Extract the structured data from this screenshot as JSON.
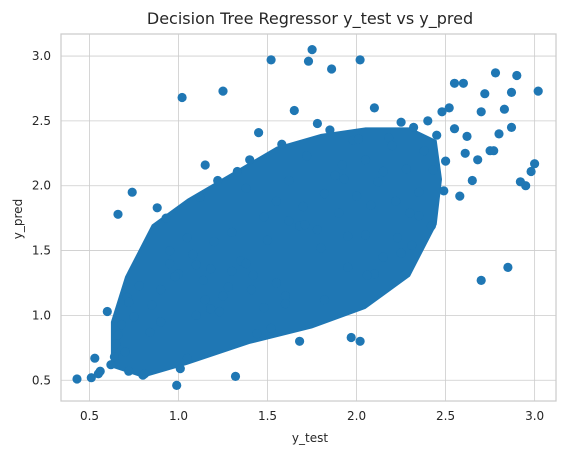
{
  "chart_data": {
    "type": "scatter",
    "title": "Decision Tree Regressor y_test vs y_pred",
    "xlabel": "y_test",
    "ylabel": "y_pred",
    "xlim": [
      0.34,
      3.12
    ],
    "ylim": [
      0.34,
      3.17
    ],
    "xticks": [
      0.5,
      1.0,
      1.5,
      2.0,
      2.5,
      3.0
    ],
    "xtick_labels": [
      "0.5",
      "1.0",
      "1.5",
      "2.0",
      "2.5",
      "3.0"
    ],
    "yticks": [
      0.5,
      1.0,
      1.5,
      2.0,
      2.5,
      3.0
    ],
    "ytick_labels": [
      "0.5",
      "1.0",
      "1.5",
      "2.0",
      "2.5",
      "3.0"
    ],
    "grid": true,
    "marker_color": "#1f77b4",
    "series": [
      {
        "x": [
          0.43,
          0.51,
          0.53,
          0.56,
          0.55,
          0.62,
          0.65,
          0.6,
          0.64,
          0.7,
          0.72,
          0.68,
          0.75,
          0.66,
          0.8,
          0.78,
          0.71,
          0.85,
          0.9,
          0.88,
          0.93,
          0.95,
          1.0,
          1.02,
          1.05,
          1.08,
          1.1,
          1.12,
          1.15,
          1.18,
          1.2,
          1.22,
          1.25,
          1.28,
          1.3,
          1.33,
          1.35,
          1.38,
          1.4,
          1.42,
          1.45,
          1.48,
          1.5,
          1.52,
          1.55,
          1.58,
          1.6,
          1.62,
          1.65,
          1.68,
          1.7,
          1.72,
          1.75,
          1.78,
          1.8,
          1.82,
          1.85,
          1.88,
          1.9,
          1.92,
          1.95,
          1.98,
          2.0,
          2.02,
          2.05,
          2.08,
          2.1,
          2.12,
          2.15,
          2.18,
          2.2,
          2.22,
          2.25,
          2.28,
          2.3,
          2.32,
          2.35,
          2.38,
          2.4,
          2.42,
          2.45,
          2.48,
          2.5,
          2.52,
          2.55,
          2.58,
          2.6,
          2.62,
          2.65,
          2.68,
          2.7,
          2.72,
          2.75,
          2.78,
          2.8,
          2.83,
          2.87,
          2.9,
          2.95,
          3.0,
          3.02,
          0.99,
          1.1,
          1.32,
          1.55,
          1.68,
          1.71,
          1.97,
          2.02,
          1.18,
          1.05,
          0.81,
          0.9,
          1.3,
          0.95,
          2.1,
          2.23,
          0.66,
          0.74,
          2.25,
          2.55,
          2.43,
          1.95,
          2.61,
          2.49,
          2.85,
          2.98,
          2.7,
          2.77,
          2.87,
          2.92,
          1.73,
          2.01,
          1.86,
          1.93,
          2.15,
          0.84,
          0.72,
          1.38,
          1.25,
          1.48,
          1.41,
          0.98,
          1.14,
          1.62,
          1.78,
          2.06,
          2.31,
          1.52,
          1.15,
          1.23,
          1.82,
          2.05,
          2.35,
          1.01,
          1.44,
          1.6
        ],
        "y": [
          0.51,
          0.52,
          0.67,
          0.57,
          0.55,
          0.62,
          0.78,
          1.03,
          0.68,
          0.72,
          0.57,
          0.93,
          0.99,
          0.85,
          0.54,
          1.23,
          1.14,
          1.08,
          1.2,
          1.83,
          1.75,
          1.5,
          1.32,
          2.68,
          1.6,
          1.47,
          1.39,
          1.91,
          2.16,
          1.36,
          1.57,
          2.04,
          2.73,
          1.22,
          1.64,
          2.11,
          1.42,
          1.98,
          2.2,
          1.31,
          2.41,
          1.76,
          1.58,
          2.97,
          1.88,
          2.32,
          1.15,
          1.73,
          2.58,
          1.69,
          1.84,
          2.23,
          3.05,
          1.66,
          1.52,
          1.94,
          2.43,
          2.08,
          1.79,
          2.16,
          1.61,
          2.35,
          1.92,
          2.97,
          2.2,
          1.85,
          2.6,
          2.03,
          2.11,
          2.37,
          2.31,
          1.88,
          2.49,
          2.13,
          1.79,
          2.45,
          1.95,
          2.27,
          2.5,
          1.69,
          2.39,
          2.57,
          2.19,
          2.6,
          2.44,
          1.92,
          2.79,
          2.38,
          2.04,
          2.2,
          2.57,
          2.71,
          2.27,
          2.87,
          2.4,
          2.59,
          2.72,
          2.85,
          2.0,
          2.17,
          2.73,
          0.46,
          1.0,
          0.53,
          1.25,
          0.8,
          1.7,
          0.83,
          0.8,
          1.05,
          0.67,
          0.55,
          0.95,
          1.34,
          1.4,
          1.32,
          1.6,
          1.78,
          1.95,
          1.48,
          2.79,
          2.12,
          1.37,
          2.25,
          1.96,
          1.37,
          2.11,
          1.27,
          2.27,
          2.45,
          2.03,
          2.96,
          2.36,
          2.9,
          2.05,
          1.45,
          0.87,
          1.1,
          1.4,
          1.15,
          1.06,
          1.2,
          1.3,
          1.27,
          2.04,
          2.48,
          1.31,
          1.54,
          0.9,
          1.12,
          1.03,
          1.12,
          1.62,
          1.77,
          0.59,
          0.86,
          1.09
        ]
      }
    ]
  }
}
